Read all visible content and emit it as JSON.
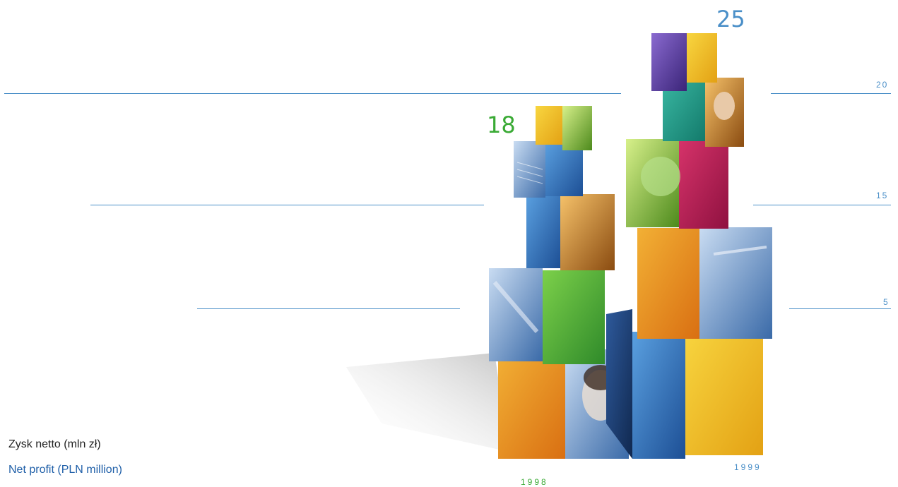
{
  "chart_data": {
    "type": "bar",
    "categories": [
      "1998",
      "1999"
    ],
    "values": [
      18,
      25
    ],
    "value_labels": [
      "18",
      "25"
    ],
    "ylabel": "Zysk netto (mln zł)",
    "ylabel_en": "Net profit (PLN million)",
    "y_tick_labels": [
      "20",
      "15",
      "5"
    ],
    "grid": true,
    "colors": {
      "1998": "#3aaa35",
      "1999": "#4a8fc8",
      "gridline": "#4a8fc8",
      "label_pl": "#222222",
      "label_en": "#1f5fa8",
      "year_1998": "#3aaa35",
      "year_1999": "#4a8fc8"
    }
  }
}
